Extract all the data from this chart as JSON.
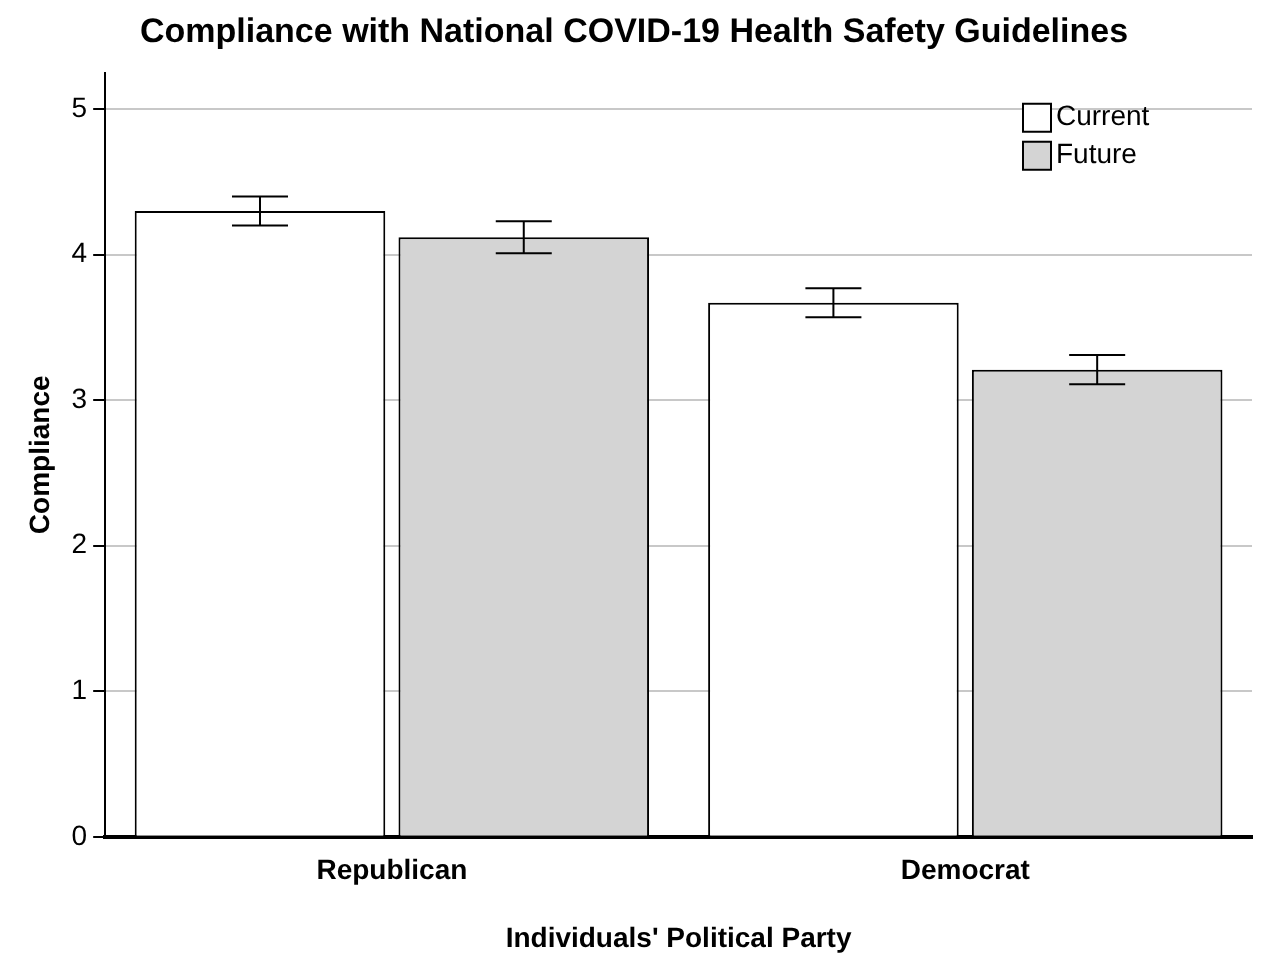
{
  "chart_data": {
    "type": "bar",
    "title": "Compliance with National COVID-19 Health Safety Guidelines",
    "xlabel": "Individuals' Political Party",
    "ylabel": "Compliance",
    "categories": [
      "Republican",
      "Democrat"
    ],
    "series": [
      {
        "name": "Current",
        "color": "#ffffff",
        "values": [
          4.3,
          3.67
        ],
        "errors": [
          0.1,
          0.1
        ]
      },
      {
        "name": "Future",
        "color": "#d4d4d4",
        "values": [
          4.12,
          3.21
        ],
        "errors": [
          0.11,
          0.1
        ]
      }
    ],
    "ylim": [
      0,
      5.25
    ],
    "yticks": [
      0,
      1,
      2,
      3,
      4,
      5
    ],
    "grid": "y",
    "legend": "top right"
  }
}
